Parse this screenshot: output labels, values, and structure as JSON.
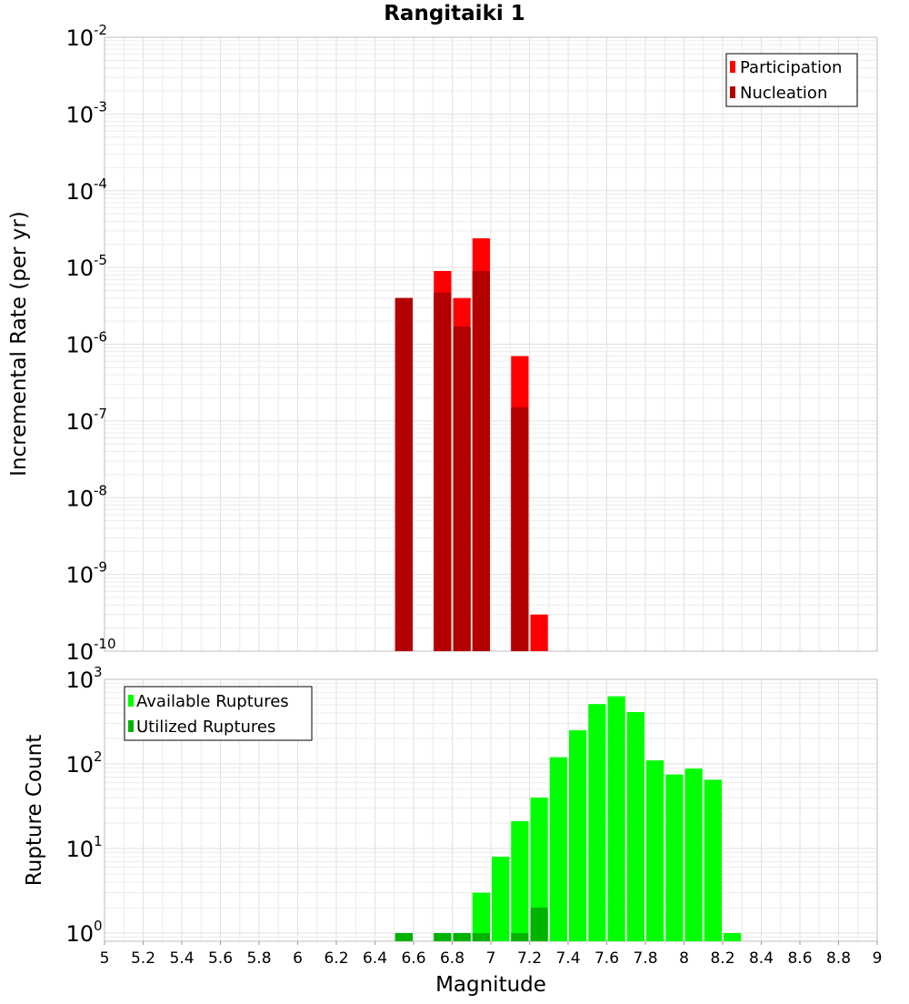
{
  "chart_data": [
    {
      "type": "bar",
      "title": "Rangitaiki 1",
      "ylabel": "Incremental Rate (per yr)",
      "xlabel": "",
      "xlim": [
        5,
        9
      ],
      "ylim": [
        1e-10,
        0.01
      ],
      "yscale": "log",
      "bin_width": 0.1,
      "y_ticks": [
        {
          "base": "10",
          "exp": "-2"
        },
        {
          "base": "10",
          "exp": "-3"
        },
        {
          "base": "10",
          "exp": "-4"
        },
        {
          "base": "10",
          "exp": "-5"
        },
        {
          "base": "10",
          "exp": "-6"
        },
        {
          "base": "10",
          "exp": "-7"
        },
        {
          "base": "10",
          "exp": "-8"
        },
        {
          "base": "10",
          "exp": "-9"
        },
        {
          "base": "10",
          "exp": "-10"
        }
      ],
      "legend_position": "top-right",
      "series": [
        {
          "name": "Participation",
          "color": "#ff0000",
          "x": [
            6.55,
            6.75,
            6.85,
            6.95,
            7.15,
            7.25
          ],
          "values": [
            4e-06,
            9e-06,
            4e-06,
            2.4e-05,
            7e-07,
            3e-10
          ]
        },
        {
          "name": "Nucleation",
          "color": "#b30000",
          "x": [
            6.55,
            6.75,
            6.85,
            6.95,
            7.15
          ],
          "values": [
            4e-06,
            4.7e-06,
            1.7e-06,
            9e-06,
            1.5e-07
          ]
        }
      ]
    },
    {
      "type": "bar",
      "title": "",
      "ylabel": "Rupture Count",
      "xlabel": "Magnitude",
      "xlim": [
        5,
        9
      ],
      "ylim": [
        0.8,
        1000
      ],
      "yscale": "log",
      "bin_width": 0.1,
      "x_ticks": [
        "5",
        "5.2",
        "5.4",
        "5.6",
        "5.8",
        "6",
        "6.2",
        "6.4",
        "6.6",
        "6.8",
        "7",
        "7.2",
        "7.4",
        "7.6",
        "7.8",
        "8",
        "8.2",
        "8.4",
        "8.6",
        "8.8",
        "9"
      ],
      "y_ticks": [
        {
          "base": "10",
          "exp": "3"
        },
        {
          "base": "10",
          "exp": "2"
        },
        {
          "base": "10",
          "exp": "1"
        },
        {
          "base": "10",
          "exp": "0"
        }
      ],
      "legend_position": "top-left",
      "series": [
        {
          "name": "Available Ruptures",
          "color": "#00ff00",
          "x": [
            6.55,
            6.75,
            6.85,
            6.95,
            7.05,
            7.15,
            7.25,
            7.35,
            7.45,
            7.55,
            7.65,
            7.75,
            7.85,
            7.95,
            8.05,
            8.15,
            8.25
          ],
          "values": [
            1,
            1,
            1,
            3,
            8,
            21,
            40,
            120,
            250,
            510,
            630,
            410,
            110,
            75,
            88,
            65,
            1
          ]
        },
        {
          "name": "Utilized Ruptures",
          "color": "#00b300",
          "x": [
            6.55,
            6.75,
            6.85,
            6.95,
            7.15,
            7.25
          ],
          "values": [
            1,
            1,
            1,
            1,
            1,
            2
          ]
        }
      ]
    }
  ]
}
